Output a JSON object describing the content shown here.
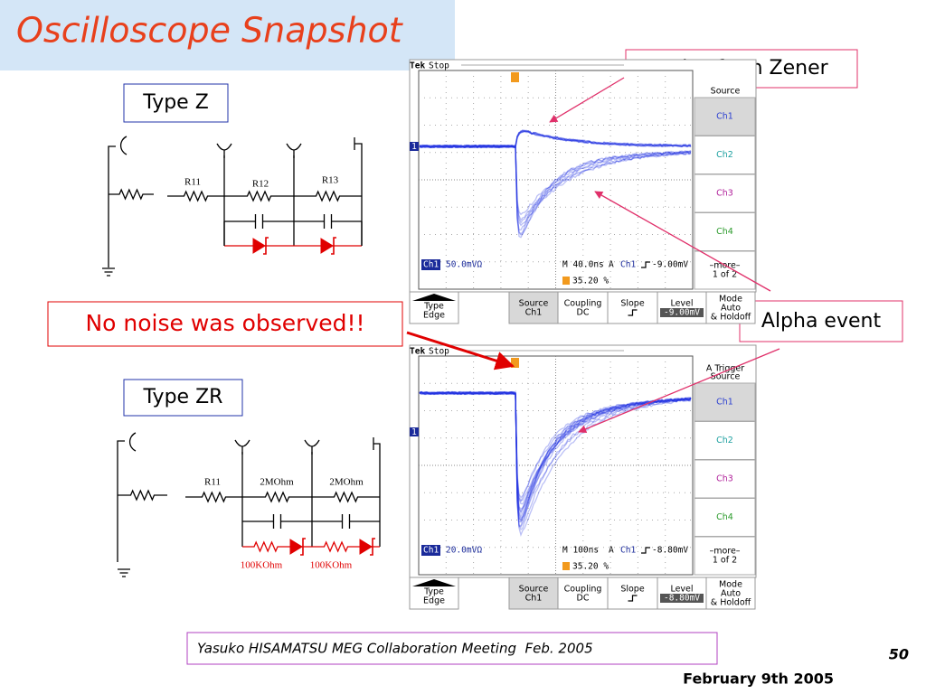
{
  "title": "Oscilloscope Snapshot",
  "callouts": {
    "noise_zener": "Noise from Zener",
    "no_noise": "No noise was observed!!",
    "alpha": "Alpha event"
  },
  "circuits": [
    {
      "label": "Type Z",
      "resistors": [
        "R11",
        "R12",
        "R13"
      ]
    },
    {
      "label": "Type ZR",
      "resistors": [
        "R11",
        "2MOhm",
        "2MOhm"
      ],
      "zener_resistors": [
        "100KOhm",
        "100KOhm"
      ]
    }
  ],
  "scopes": [
    {
      "header": {
        "brand": "Tek",
        "state": "Stop"
      },
      "marker": "1",
      "menu_title": [
        "Source"
      ],
      "menu": [
        "Ch1",
        "Ch2",
        "Ch3",
        "Ch4"
      ],
      "more": [
        "–more–",
        "1 of 2"
      ],
      "status": {
        "channel": "Ch1",
        "scale": "50.0mVΩ",
        "timebase": "M 40.0ns",
        "trig_mode": "A",
        "trig_channel": "Ch1",
        "trig_level": "-9.00mV",
        "position": "35.20 %"
      },
      "buttons": [
        [
          "Type",
          "Edge"
        ],
        [
          "Source",
          "Ch1"
        ],
        [
          "Coupling",
          "DC"
        ],
        [
          "Slope"
        ],
        [
          "Level",
          "-9.00mV"
        ],
        [
          "Mode",
          "Auto",
          "& Holdoff"
        ]
      ]
    },
    {
      "header": {
        "brand": "Tek",
        "state": "Stop"
      },
      "marker": "1",
      "menu_title": [
        "A Trigger",
        "Source"
      ],
      "menu": [
        "Ch1",
        "Ch2",
        "Ch3",
        "Ch4"
      ],
      "more": [
        "–more–",
        "1 of 2"
      ],
      "status": {
        "channel": "Ch1",
        "scale": "20.0mVΩ",
        "timebase": "M 100ns",
        "trig_mode": "A",
        "trig_channel": "Ch1",
        "trig_level": "-8.80mV",
        "position": "35.20 %"
      },
      "buttons": [
        [
          "Type",
          "Edge"
        ],
        [
          "Source",
          "Ch1"
        ],
        [
          "Coupling",
          "DC"
        ],
        [
          "Slope"
        ],
        [
          "Level",
          "-8.80mV"
        ],
        [
          "Mode",
          "Auto",
          "& Holdoff"
        ]
      ]
    }
  ],
  "footer": {
    "citation": "Yasuko HISAMATSU MEG Collaboration Meeting  Feb. 2005",
    "page": "50",
    "date": "February 9th 2005"
  }
}
